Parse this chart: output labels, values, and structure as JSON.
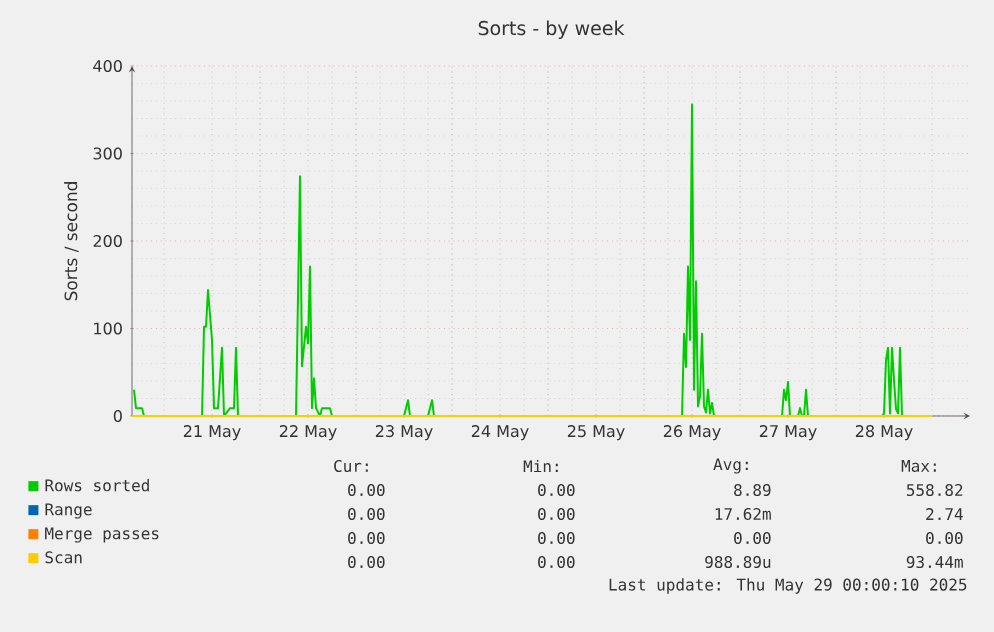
{
  "chart_data": {
    "type": "line",
    "title": "Sorts - by week",
    "ylabel": "Sorts / second",
    "xlim": [
      "2025-05-20T16:00",
      "2025-05-29T09:30"
    ],
    "xticks": [
      {
        "value": "2025-05-21T00:00",
        "label": null
      },
      {
        "value": "2025-05-21T12:00",
        "label": "21 May"
      },
      {
        "value": "2025-05-22T00:00",
        "label": null
      },
      {
        "value": "2025-05-22T12:00",
        "label": "22 May"
      },
      {
        "value": "2025-05-23T00:00",
        "label": null
      },
      {
        "value": "2025-05-23T12:00",
        "label": "23 May"
      },
      {
        "value": "2025-05-24T00:00",
        "label": null
      },
      {
        "value": "2025-05-24T12:00",
        "label": "24 May"
      },
      {
        "value": "2025-05-25T00:00",
        "label": null
      },
      {
        "value": "2025-05-25T12:00",
        "label": "25 May"
      },
      {
        "value": "2025-05-26T00:00",
        "label": null
      },
      {
        "value": "2025-05-26T12:00",
        "label": "26 May"
      },
      {
        "value": "2025-05-27T00:00",
        "label": null
      },
      {
        "value": "2025-05-27T12:00",
        "label": "27 May"
      },
      {
        "value": "2025-05-28T00:00",
        "label": null
      },
      {
        "value": "2025-05-28T12:00",
        "label": "28 May"
      },
      {
        "value": "2025-05-29T00:00",
        "label": null
      }
    ],
    "ylim": [
      0,
      400
    ],
    "yticks": [
      0,
      100,
      200,
      300,
      400
    ],
    "grid": true,
    "legend": "bottom",
    "marker": "none",
    "series": [
      {
        "name": "Rows sorted",
        "color": "#00cc00",
        "x": [
          "2025-05-20T16:30",
          "2025-05-20T17:00",
          "2025-05-20T18:30",
          "2025-05-20T19:00",
          "2025-05-21T09:30",
          "2025-05-21T10:00",
          "2025-05-21T10:30",
          "2025-05-21T11:00",
          "2025-05-21T12:00",
          "2025-05-21T12:30",
          "2025-05-21T13:30",
          "2025-05-21T14:30",
          "2025-05-21T15:00",
          "2025-05-21T16:30",
          "2025-05-21T17:30",
          "2025-05-21T18:00",
          "2025-05-21T18:30",
          "2025-05-22T09:00",
          "2025-05-22T10:00",
          "2025-05-22T10:30",
          "2025-05-22T11:30",
          "2025-05-22T12:00",
          "2025-05-22T12:30",
          "2025-05-22T13:00",
          "2025-05-22T13:30",
          "2025-05-22T14:00",
          "2025-05-22T15:00",
          "2025-05-22T15:30",
          "2025-05-22T17:30",
          "2025-05-22T18:00",
          "2025-05-23T12:00",
          "2025-05-23T13:00",
          "2025-05-23T13:30",
          "2025-05-23T18:00",
          "2025-05-23T19:00",
          "2025-05-23T19:30",
          "2025-05-26T09:30",
          "2025-05-26T10:00",
          "2025-05-26T10:30",
          "2025-05-26T11:00",
          "2025-05-26T11:30",
          "2025-05-26T12:00",
          "2025-05-26T12:30",
          "2025-05-26T13:00",
          "2025-05-26T13:30",
          "2025-05-26T14:00",
          "2025-05-26T14:30",
          "2025-05-26T15:00",
          "2025-05-26T15:30",
          "2025-05-26T16:00",
          "2025-05-26T16:30",
          "2025-05-26T17:00",
          "2025-05-26T17:30",
          "2025-05-27T10:30",
          "2025-05-27T11:00",
          "2025-05-27T11:30",
          "2025-05-27T12:00",
          "2025-05-27T12:30",
          "2025-05-27T14:30",
          "2025-05-27T15:00",
          "2025-05-27T15:30",
          "2025-05-27T16:00",
          "2025-05-27T16:30",
          "2025-05-27T17:00",
          "2025-05-28T11:30",
          "2025-05-28T12:00",
          "2025-05-28T12:30",
          "2025-05-28T13:00",
          "2025-05-28T13:30",
          "2025-05-28T14:00",
          "2025-05-28T14:30",
          "2025-05-28T15:00",
          "2025-05-28T15:30",
          "2025-05-28T16:00",
          "2025-05-28T16:30",
          "2025-05-29T00:00"
        ],
        "values": [
          30,
          9,
          9,
          0,
          0,
          102,
          102,
          144,
          87,
          9,
          9,
          78,
          0,
          9,
          9,
          78,
          0,
          0,
          274,
          57,
          102,
          83,
          171,
          9,
          43,
          9,
          0,
          9,
          9,
          0,
          0,
          18,
          0,
          0,
          18,
          0,
          0,
          94,
          56,
          171,
          87,
          356,
          30,
          154,
          11,
          23,
          94,
          11,
          4,
          30,
          3,
          15,
          0,
          0,
          30,
          18,
          39,
          0,
          0,
          9,
          0,
          0,
          30,
          0,
          0,
          3,
          64,
          78,
          3,
          78,
          41,
          8,
          3,
          78,
          0,
          0
        ]
      },
      {
        "name": "Range",
        "color": "#0066b3"
      },
      {
        "name": "Merge passes",
        "color": "#ff8000"
      },
      {
        "name": "Scan",
        "color": "#ffcc00",
        "x": [
          "2025-05-20T16:00",
          "2025-05-29T00:00"
        ],
        "values": [
          0,
          0
        ]
      }
    ],
    "annotations": [
      "Cur:",
      "Min:",
      "Avg:",
      "Max:",
      "0.00",
      "0.00",
      "8.89",
      "558.82",
      "0.00",
      "0.00",
      "17.62m",
      "2.74",
      "0.00",
      "0.00",
      "0.00",
      "0.00",
      "0.00",
      "0.00",
      "988.89u",
      "93.44m",
      "Last update:  Thu May 29 00:00:10 2025"
    ]
  }
}
